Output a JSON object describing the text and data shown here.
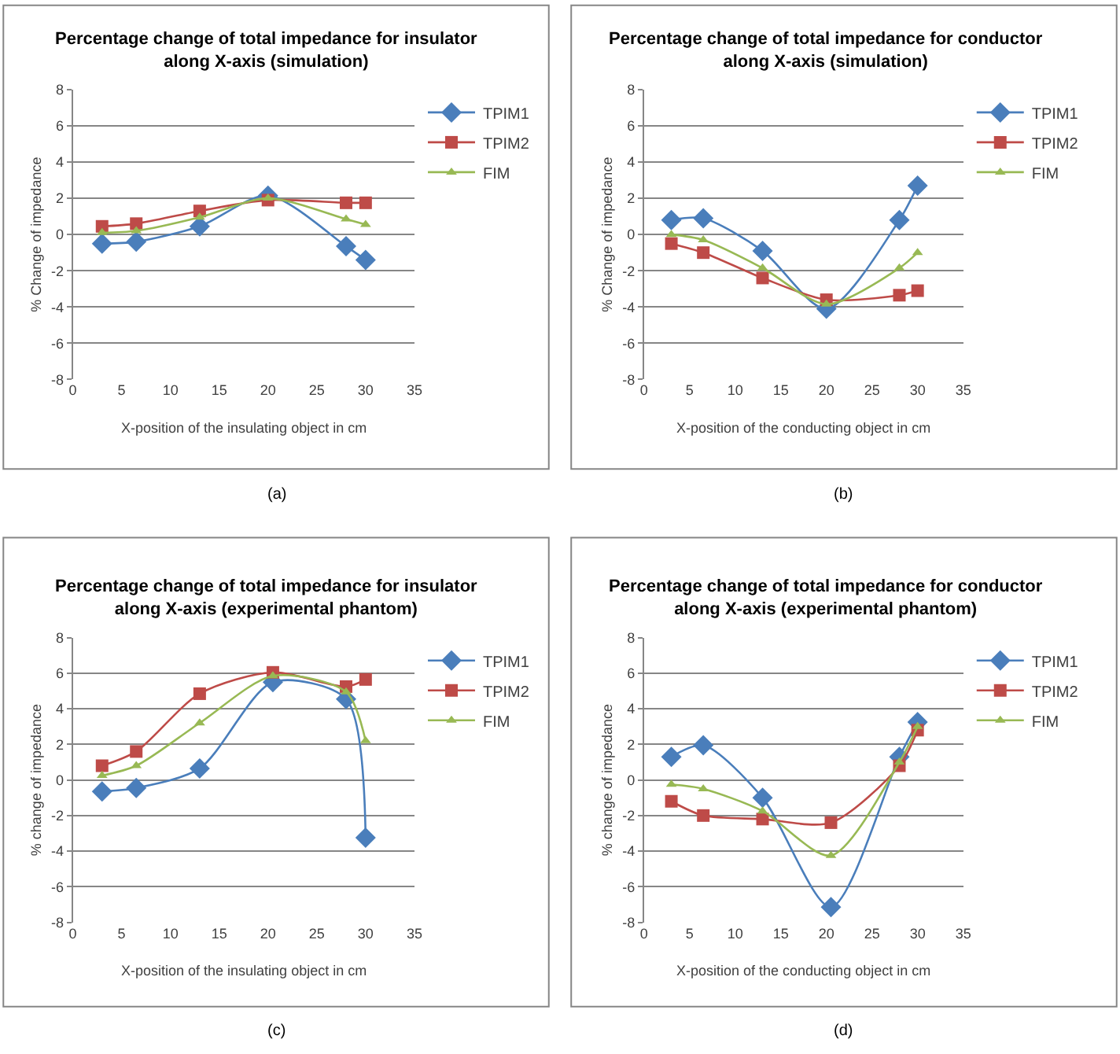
{
  "chart_data": [
    {
      "type": "line",
      "title": "Percentage change of total impedance for insulator\nalong X-axis (simulation)",
      "xlabel": "X-position of the insulating object in cm",
      "ylabel": "% Change of impedance",
      "annotations": [
        "(a)"
      ],
      "x": [
        3,
        6.5,
        13,
        20,
        28,
        30
      ],
      "xlim": [
        0,
        35
      ],
      "xticks": [
        0,
        5,
        10,
        15,
        20,
        25,
        30,
        35
      ],
      "ylim": [
        -8,
        8
      ],
      "yticks": [
        -8,
        -6,
        -4,
        -2,
        0,
        2,
        4,
        6,
        8
      ],
      "grid": "y",
      "legend": "right",
      "line_style": "solid",
      "series": [
        {
          "name": "TPIM1",
          "color": "#4a7ebb",
          "marker": "diamond",
          "values": [
            -0.5,
            -0.4,
            0.45,
            2.15,
            -0.65,
            -1.4
          ]
        },
        {
          "name": "TPIM2",
          "color": "#be4b48",
          "marker": "square",
          "values": [
            0.45,
            0.6,
            1.3,
            1.9,
            1.75,
            1.75
          ]
        },
        {
          "name": "FIM",
          "color": "#98b954",
          "marker": "triangle",
          "values": [
            0.1,
            0.2,
            0.95,
            2.0,
            0.85,
            0.55
          ]
        }
      ]
    },
    {
      "type": "line",
      "title": "Percentage change of total impedance for conductor\nalong X-axis (simulation)",
      "xlabel": "X-position of the conducting object in cm",
      "ylabel": "% Change of impedance",
      "annotations": [
        "(b)"
      ],
      "x": [
        3,
        6.5,
        13,
        20,
        28,
        30
      ],
      "xlim": [
        0,
        35
      ],
      "xticks": [
        0,
        5,
        10,
        15,
        20,
        25,
        30,
        35
      ],
      "ylim": [
        -8,
        8
      ],
      "yticks": [
        -8,
        -6,
        -4,
        -2,
        0,
        2,
        4,
        6,
        8
      ],
      "grid": "y",
      "legend": "right",
      "line_style": "solid",
      "series": [
        {
          "name": "TPIM1",
          "color": "#4a7ebb",
          "marker": "diamond",
          "values": [
            0.8,
            0.9,
            -0.9,
            -4.1,
            0.8,
            2.7
          ]
        },
        {
          "name": "TPIM2",
          "color": "#be4b48",
          "marker": "square",
          "values": [
            -0.5,
            -1.0,
            -2.4,
            -3.6,
            -3.35,
            -3.1
          ]
        },
        {
          "name": "FIM",
          "color": "#98b954",
          "marker": "triangle",
          "values": [
            0.0,
            -0.3,
            -1.85,
            -3.85,
            -1.85,
            -1.0
          ]
        }
      ]
    },
    {
      "type": "line",
      "title": "Percentage change of total impedance for insulator\nalong X-axis (experimental phantom)",
      "xlabel": "X-position of the insulating object in cm",
      "ylabel": "% change of impedance",
      "annotations": [
        "(c)"
      ],
      "x": [
        3,
        6.5,
        13,
        20.5,
        28,
        30
      ],
      "xlim": [
        0,
        35
      ],
      "xticks": [
        0,
        5,
        10,
        15,
        20,
        25,
        30,
        35
      ],
      "ylim": [
        -8,
        8
      ],
      "yticks": [
        -8,
        -6,
        -4,
        -2,
        0,
        2,
        4,
        6,
        8
      ],
      "grid": "y",
      "legend": "right",
      "line_style": "solid",
      "series": [
        {
          "name": "TPIM1",
          "color": "#4a7ebb",
          "marker": "diamond",
          "values": [
            -0.65,
            -0.45,
            0.65,
            5.5,
            4.55,
            -3.25
          ]
        },
        {
          "name": "TPIM2",
          "color": "#be4b48",
          "marker": "square",
          "values": [
            0.8,
            1.6,
            4.85,
            6.05,
            5.25,
            5.65
          ]
        },
        {
          "name": "FIM",
          "color": "#98b954",
          "marker": "triangle",
          "values": [
            0.25,
            0.8,
            3.2,
            5.85,
            4.95,
            2.2
          ]
        }
      ]
    },
    {
      "type": "line",
      "title": "Percentage change of total impedance for conductor\nalong X-axis (experimental phantom)",
      "xlabel": "X-position of the conducting object in cm",
      "ylabel": "% change of impedance",
      "annotations": [
        "(d)"
      ],
      "x": [
        3,
        6.5,
        13,
        20.5,
        28,
        30
      ],
      "xlim": [
        0,
        35
      ],
      "xticks": [
        0,
        5,
        10,
        15,
        20,
        25,
        30,
        35
      ],
      "ylim": [
        -8,
        8
      ],
      "yticks": [
        -8,
        -6,
        -4,
        -2,
        0,
        2,
        4,
        6,
        8
      ],
      "grid": "y",
      "legend": "right",
      "line_style": "solid",
      "series": [
        {
          "name": "TPIM1",
          "color": "#4a7ebb",
          "marker": "diamond",
          "values": [
            1.3,
            1.95,
            -1.0,
            -7.15,
            1.3,
            3.25
          ]
        },
        {
          "name": "TPIM2",
          "color": "#be4b48",
          "marker": "square",
          "values": [
            -1.2,
            -2.0,
            -2.2,
            -2.4,
            0.8,
            2.8
          ]
        },
        {
          "name": "FIM",
          "color": "#98b954",
          "marker": "triangle",
          "values": [
            -0.25,
            -0.5,
            -1.75,
            -4.25,
            1.0,
            3.0
          ]
        }
      ]
    }
  ]
}
